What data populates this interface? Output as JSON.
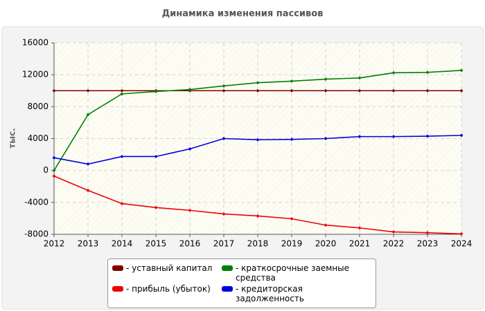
{
  "chart_data": {
    "type": "line",
    "title": "Динамика изменения пассивов",
    "y_label": "тыс.",
    "x": [
      2012,
      2013,
      2014,
      2015,
      2016,
      2017,
      2018,
      2019,
      2020,
      2021,
      2022,
      2023,
      2024
    ],
    "xlim": [
      2012,
      2024
    ],
    "xticks": [
      2012,
      2013,
      2014,
      2015,
      2016,
      2017,
      2018,
      2019,
      2020,
      2021,
      2022,
      2023,
      2024
    ],
    "ylim": [
      -8000,
      16000
    ],
    "yticks": [
      -8000,
      -4000,
      0,
      4000,
      8000,
      12000,
      16000
    ],
    "grid": true,
    "series": [
      {
        "name": "- уставный капитал",
        "color": "#800000",
        "values": [
          10000,
          10000,
          10000,
          10000,
          10000,
          10000,
          10000,
          10000,
          10000,
          10000,
          10000,
          10000,
          10000
        ]
      },
      {
        "name": "- прибыль (убыток)",
        "color": "#ee0000",
        "values": [
          -700,
          -2500,
          -4150,
          -4650,
          -5000,
          -5450,
          -5700,
          -6050,
          -6850,
          -7200,
          -7700,
          -7800,
          -7950
        ]
      },
      {
        "name": "- краткосрочные заемные средства",
        "color": "#008000",
        "values": [
          0,
          7000,
          9600,
          9900,
          10150,
          10600,
          11000,
          11200,
          11450,
          11600,
          12250,
          12300,
          12550
        ]
      },
      {
        "name": "- кредиторская задолженность",
        "color": "#0000dd",
        "values": [
          1600,
          800,
          1750,
          1750,
          2700,
          4000,
          3850,
          3900,
          4000,
          4250,
          4250,
          4300,
          4400
        ]
      }
    ]
  }
}
